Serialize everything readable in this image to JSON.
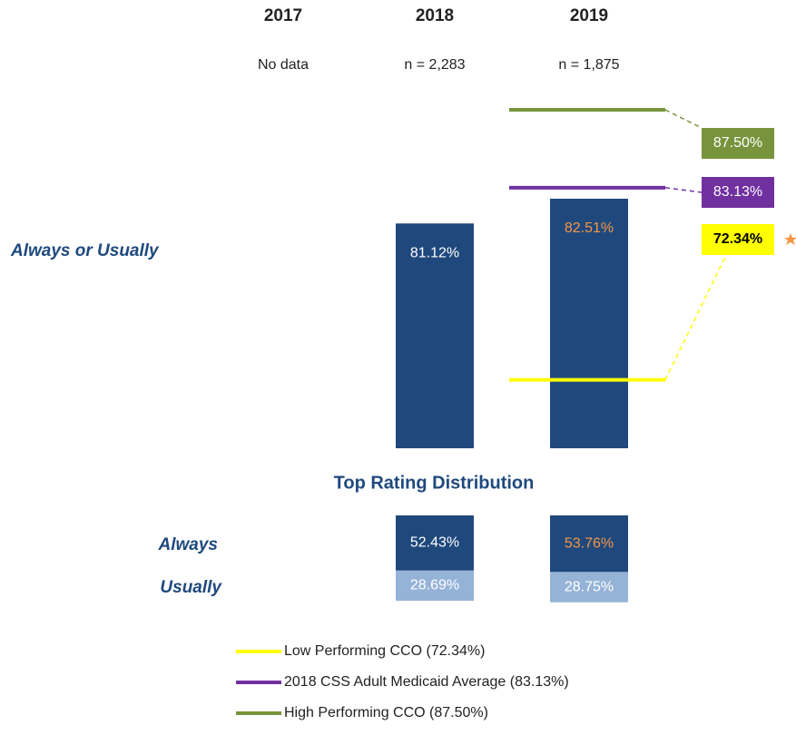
{
  "chart_data": {
    "type": "bar",
    "categories": [
      "2017",
      "2018",
      "2019"
    ],
    "sample_sizes": [
      "No data",
      "n = 2,283",
      "n = 1,875"
    ],
    "row_label": "Always or Usually",
    "values": [
      null,
      81.12,
      82.51
    ],
    "value_labels": [
      null,
      "81.12%",
      "82.51%"
    ],
    "value_label_colors": [
      null,
      "#ffffff",
      "#f79646"
    ],
    "color": "#1f497d",
    "ylim": [
      68.5,
      88.5
    ],
    "reference_lines": [
      {
        "name": "Low Performing CCO (72.34%)",
        "value": 72.34,
        "label": "72.34%",
        "color": "#ffff00",
        "text_color": "#000000"
      },
      {
        "name": "2018 CSS Adult Medicaid Average (83.13%)",
        "value": 83.13,
        "label": "83.13%",
        "color": "#7030a0",
        "text_color": "#ffffff"
      },
      {
        "name": "High Performing CCO (87.50%)",
        "value": 87.5,
        "label": "87.50%",
        "color": "#77933c",
        "text_color": "#ffffff"
      }
    ],
    "distribution": {
      "title": "Top Rating Distribution",
      "rows": [
        {
          "name": "Always",
          "color": "#1f497d",
          "values": [
            null,
            52.43,
            53.76
          ],
          "value_labels": [
            null,
            "52.43%",
            "53.76%"
          ],
          "label_colors": [
            null,
            "#ffffff",
            "#f79646"
          ]
        },
        {
          "name": "Usually",
          "color": "#95b3d7",
          "values": [
            null,
            28.69,
            28.75
          ],
          "value_labels": [
            null,
            "28.69%",
            "28.75%"
          ],
          "label_colors": [
            null,
            "#ffffff",
            "#ffffff"
          ]
        }
      ]
    }
  }
}
